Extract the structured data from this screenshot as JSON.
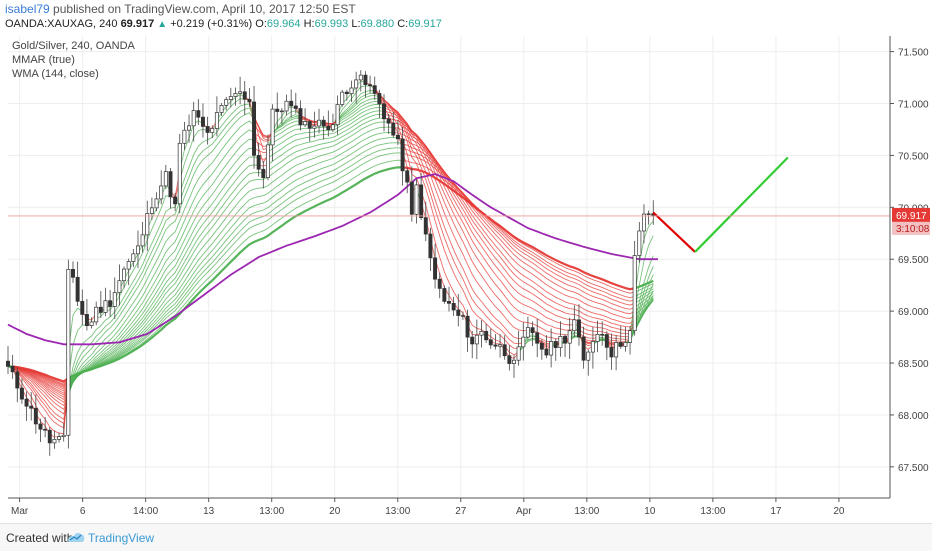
{
  "header": {
    "author": "isabel79",
    "published_text": "published on TradingView.com, April 10, 2017 12:50 EST",
    "symbol": "OANDA:XAUXAG, 240",
    "last": "69.917",
    "change": "+0.219 (+0.31%)",
    "o_label": "O:",
    "o_value": "69.964",
    "h_label": "H:",
    "h_value": "69.993",
    "l_label": "L:",
    "l_value": "69.880",
    "c_label": "C:",
    "c_value": "69.917"
  },
  "legend": {
    "title": "Gold/Silver, 240, OANDA",
    "indicator1": "MMAR (true)",
    "indicator2": "WMA (144, close)"
  },
  "price_label": "69.917",
  "timer_label": "3:10:08",
  "footer": {
    "created_with": "Created with",
    "brand": "TradingView"
  },
  "colors": {
    "candle_up": "#26a69a",
    "candle_down": "#ef5350",
    "ribbon_up": "#4caf50",
    "ribbon_down": "#e53935",
    "wma": "#9c27b0",
    "forecast_down": "#e00000",
    "forecast_up": "#33cc33"
  },
  "chart_data": {
    "type": "candlestick",
    "x_tick_labels": [
      "Mar",
      "6",
      "14:00",
      "13",
      "13:00",
      "20",
      "13:00",
      "27",
      "Apr",
      "13:00",
      "10",
      "13:00",
      "17",
      "20"
    ],
    "y_tick_labels": [
      "71.500",
      "71.000",
      "70.500",
      "70.000",
      "69.500",
      "69.000",
      "68.500",
      "68.000",
      "67.500"
    ],
    "ylim": [
      67.2,
      71.65
    ],
    "price_path": [
      [
        0,
        68.45
      ],
      [
        3,
        68.2
      ],
      [
        6,
        67.95
      ],
      [
        9,
        67.75
      ],
      [
        12,
        67.75
      ],
      [
        13,
        69.4
      ],
      [
        14,
        69.35
      ],
      [
        15,
        69.1
      ],
      [
        17,
        68.85
      ],
      [
        19,
        69.0
      ],
      [
        22,
        69.1
      ],
      [
        25,
        69.4
      ],
      [
        28,
        69.6
      ],
      [
        31,
        70.05
      ],
      [
        34,
        70.3
      ],
      [
        36,
        70.0
      ],
      [
        37,
        70.6
      ],
      [
        40,
        70.9
      ],
      [
        43,
        70.7
      ],
      [
        46,
        70.95
      ],
      [
        49,
        71.1
      ],
      [
        52,
        71.05
      ],
      [
        53,
        70.5
      ],
      [
        55,
        70.3
      ],
      [
        57,
        70.9
      ],
      [
        60,
        71.0
      ],
      [
        62,
        70.9
      ],
      [
        64,
        70.8
      ],
      [
        66,
        70.8
      ],
      [
        70,
        70.8
      ],
      [
        72,
        71.1
      ],
      [
        75,
        71.25
      ],
      [
        78,
        71.15
      ],
      [
        80,
        71.0
      ],
      [
        82,
        70.8
      ],
      [
        84,
        70.6
      ],
      [
        86,
        70.2
      ],
      [
        87,
        69.9
      ],
      [
        88,
        70.2
      ],
      [
        90,
        69.7
      ],
      [
        92,
        69.3
      ],
      [
        94,
        69.1
      ],
      [
        96,
        69.0
      ],
      [
        98,
        68.9
      ],
      [
        100,
        68.7
      ],
      [
        102,
        68.8
      ],
      [
        104,
        68.7
      ],
      [
        106,
        68.65
      ],
      [
        108,
        68.55
      ],
      [
        110,
        68.6
      ],
      [
        112,
        68.8
      ],
      [
        114,
        68.7
      ],
      [
        116,
        68.6
      ],
      [
        118,
        68.7
      ],
      [
        120,
        68.75
      ],
      [
        122,
        68.9
      ],
      [
        124,
        68.5
      ],
      [
        126,
        68.75
      ],
      [
        128,
        68.8
      ],
      [
        130,
        68.6
      ],
      [
        132,
        68.7
      ],
      [
        134,
        68.8
      ],
      [
        135,
        69.5
      ],
      [
        136,
        69.75
      ],
      [
        137,
        69.9
      ],
      [
        138,
        69.95
      ],
      [
        139,
        69.917
      ]
    ],
    "wma_series": [
      [
        0,
        68.87
      ],
      [
        4,
        68.78
      ],
      [
        8,
        68.72
      ],
      [
        12,
        68.68
      ],
      [
        18,
        68.68
      ],
      [
        24,
        68.7
      ],
      [
        30,
        68.78
      ],
      [
        36,
        68.95
      ],
      [
        42,
        69.15
      ],
      [
        48,
        69.35
      ],
      [
        54,
        69.52
      ],
      [
        60,
        69.63
      ],
      [
        66,
        69.72
      ],
      [
        72,
        69.82
      ],
      [
        78,
        69.95
      ],
      [
        84,
        70.12
      ],
      [
        88,
        70.28
      ],
      [
        92,
        70.32
      ],
      [
        96,
        70.25
      ],
      [
        100,
        70.12
      ],
      [
        104,
        70.0
      ],
      [
        108,
        69.9
      ],
      [
        112,
        69.8
      ],
      [
        118,
        69.7
      ],
      [
        124,
        69.62
      ],
      [
        130,
        69.55
      ],
      [
        136,
        69.5
      ],
      [
        140,
        69.5
      ]
    ],
    "forecast": [
      [
        139,
        69.95
      ],
      [
        148,
        69.57
      ],
      [
        168,
        70.48
      ]
    ],
    "last_price": 69.917
  }
}
